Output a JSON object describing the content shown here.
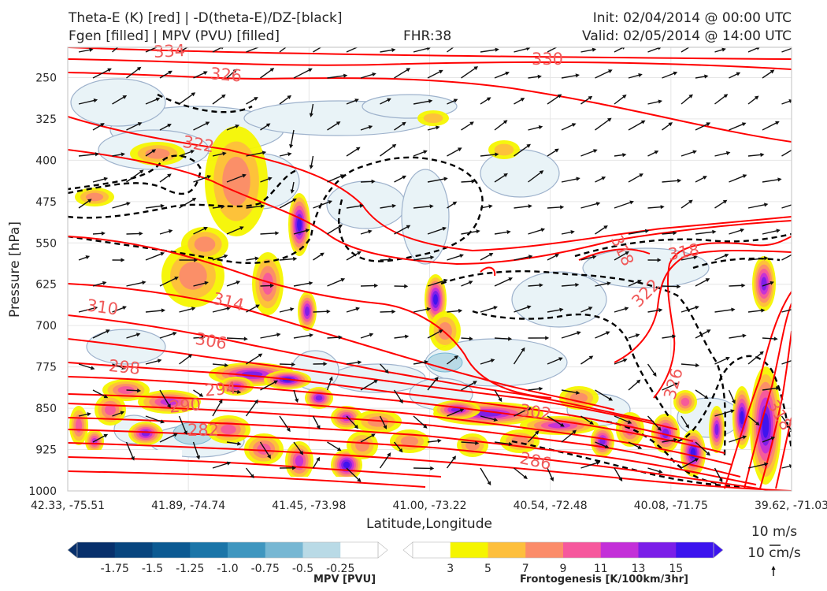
{
  "header": {
    "left_line1": "Theta-E (K) [red] | -D(theta-E)/DZ-[black]",
    "left_line2": "Fgen [filled] | MPV (PVU) [filled]",
    "center_line2": "FHR:38",
    "right_line1": "Init: 02/04/2014 @ 00:00 UTC",
    "right_line2": "Valid: 02/05/2014 @ 14:00 UTC"
  },
  "chart_data": {
    "type": "cross-section",
    "xlabel": "Latitude,Longitude",
    "ylabel": "Pressure [hPa]",
    "x_ticks": [
      "42.33, -75.51",
      "41.89, -74.74",
      "41.45, -73.98",
      "41.00, -73.22",
      "40.54, -72.48",
      "40.08, -71.75",
      "39.62, -71.03"
    ],
    "y_ticks": [
      250,
      325,
      400,
      475,
      550,
      625,
      700,
      775,
      850,
      925,
      1000
    ],
    "ylim": [
      1000,
      195
    ],
    "y_inverted": true,
    "grid": true,
    "theta_e_contour_labels": [
      "334",
      "330",
      "326",
      "322",
      "318",
      "318",
      "322",
      "314",
      "310",
      "306",
      "298",
      "294",
      "290",
      "282",
      "302",
      "286",
      "326",
      "318"
    ],
    "wind_scale": {
      "horizontal": "10 m/s",
      "vertical": "10 cm/s"
    },
    "mpv_colorbar": {
      "label": "MPV [PVU]",
      "ticks": [
        "-1.75",
        "-1.5",
        "-1.25",
        "-1.0",
        "-0.75",
        "-0.5",
        "-0.25"
      ],
      "colors": [
        "#08306b",
        "#08457e",
        "#0c5a92",
        "#1b75a8",
        "#3f96bf",
        "#77b7d3",
        "#b9dae6",
        "#ffffff"
      ]
    },
    "fgen_colorbar": {
      "label": "Frontogenesis [K/100km/3hr]",
      "ticks": [
        "3",
        "5",
        "7",
        "9",
        "11",
        "13",
        "15"
      ],
      "colors": [
        "#ffffff",
        "#f5f500",
        "#fdbf3d",
        "#fb8c6a",
        "#f6589d",
        "#c330d8",
        "#7b1fe8",
        "#3c14ee"
      ]
    }
  },
  "colors": {
    "theta_e": "#ff0000",
    "theta_e_label": "#f05a5a",
    "stability": "#000000",
    "mpv_outline": "#9eb2cc",
    "wind": "#111111"
  }
}
